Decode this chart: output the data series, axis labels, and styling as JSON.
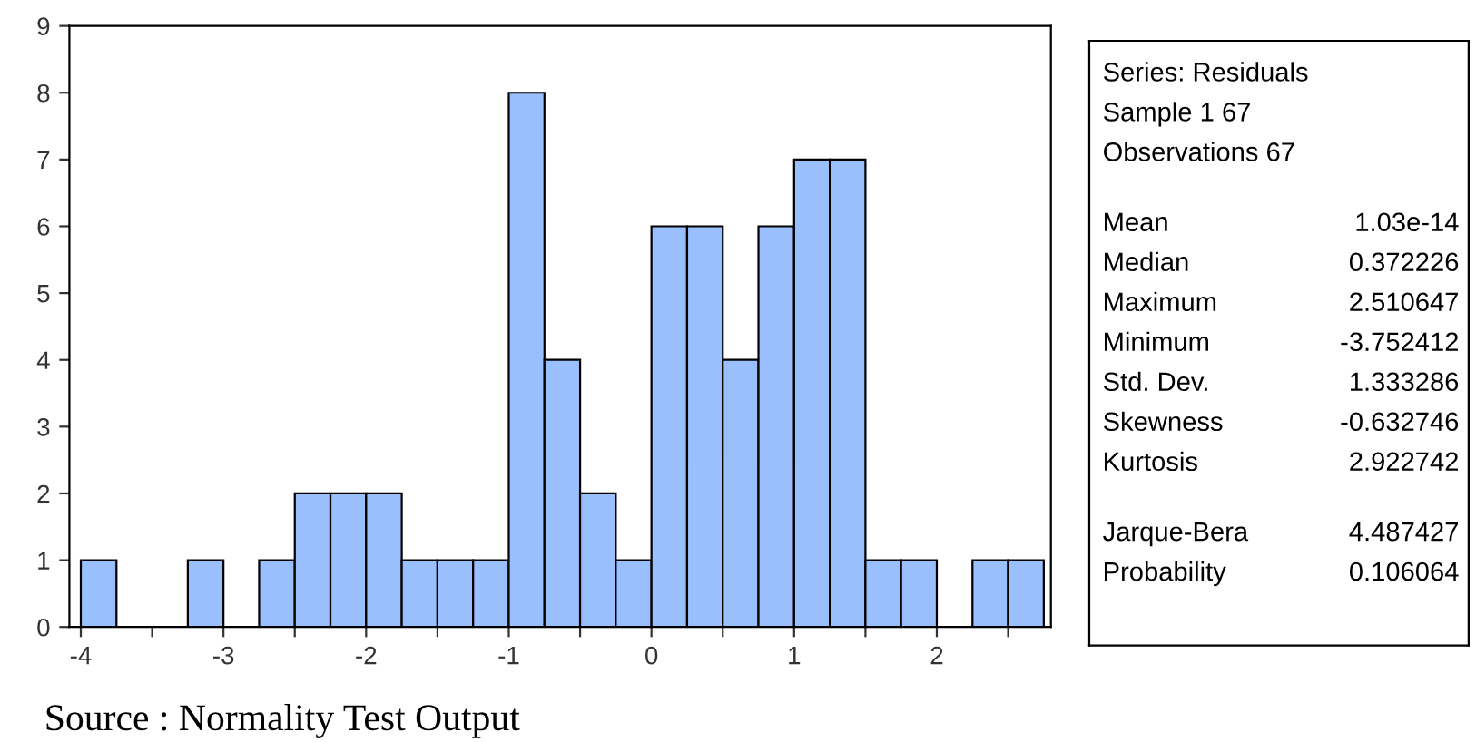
{
  "chart_data": [
    {
      "type": "histogram",
      "bins": [
        -4,
        -3.75,
        -3.5,
        -3.25,
        -3,
        -2.75,
        -2.5,
        -2.25,
        -2,
        -1.75,
        -1.5,
        -1.25,
        -1,
        -0.75,
        -0.5,
        -0.25,
        0,
        0.25,
        0.5,
        0.75,
        1,
        1.25,
        1.5,
        1.75,
        2,
        2.25,
        2.5,
        2.75
      ],
      "values": [
        1,
        0,
        0,
        1,
        0,
        1,
        2,
        2,
        2,
        1,
        1,
        1,
        8,
        4,
        2,
        1,
        6,
        6,
        4,
        6,
        7,
        7,
        1,
        1,
        0,
        1,
        1
      ],
      "color": "#99bfff",
      "xlim": [
        -4.08,
        2.8
      ],
      "ylim": [
        0,
        9
      ],
      "xticks": [
        -4,
        {
          "value": -3.5,
          "label": null
        },
        -3,
        {
          "value": -2.5,
          "label": null
        },
        -2,
        {
          "value": -1.5,
          "label": null
        },
        -1,
        {
          "value": -0.5,
          "label": null
        },
        0,
        {
          "value": 0.5,
          "label": null
        },
        1,
        {
          "value": 1.5,
          "label": null
        },
        2,
        {
          "value": 2.5,
          "label": null
        }
      ],
      "yticks": [
        0,
        1,
        2,
        3,
        4,
        5,
        6,
        7,
        8,
        9
      ],
      "grid": false,
      "annotations": [
        "Source : Normality Test Output"
      ]
    },
    {
      "type": "other",
      "annotations": [
        "Series: Residuals",
        "Sample 1 67",
        "Observations 67",
        "Mean\t1.03e-14",
        "Median\t0.372226",
        "Maximum\t2.510647",
        "Minimum\t-3.752412",
        "Std. Dev.\t1.333286",
        "Skewness\t-0.632746",
        "Kurtosis\t2.922742",
        "Jarque-Bera\t4.487427",
        "Probability\t0.106064"
      ]
    }
  ]
}
